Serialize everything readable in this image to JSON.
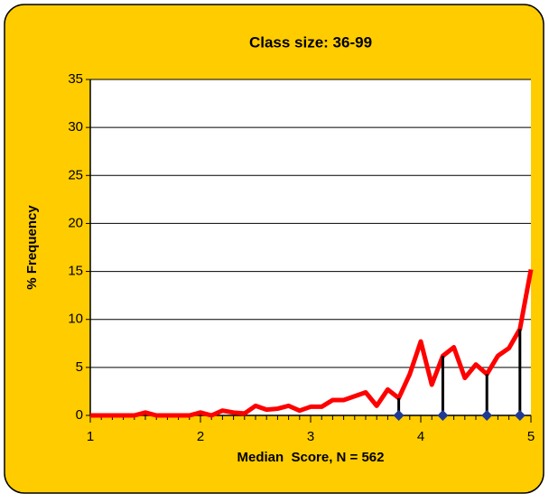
{
  "chart_data": {
    "type": "line",
    "title": "Class size: 36-99",
    "xlabel": "Median  Score, N = 562",
    "ylabel": "% Frequency",
    "x": [
      1.0,
      1.1,
      1.2,
      1.3,
      1.4,
      1.5,
      1.6,
      1.7,
      1.8,
      1.9,
      2.0,
      2.1,
      2.2,
      2.3,
      2.4,
      2.5,
      2.6,
      2.7,
      2.8,
      2.9,
      3.0,
      3.1,
      3.2,
      3.3,
      3.4,
      3.5,
      3.6,
      3.7,
      3.8,
      3.9,
      4.0,
      4.1,
      4.2,
      4.3,
      4.4,
      4.5,
      4.6,
      4.7,
      4.8,
      4.9,
      5.0
    ],
    "series": [
      {
        "color": "#ff0000",
        "values": [
          0,
          0,
          0,
          0,
          0,
          0.3,
          0,
          0,
          0,
          0,
          0.3,
          0,
          0.5,
          0.3,
          0.2,
          1.0,
          0.6,
          0.7,
          1.0,
          0.5,
          0.9,
          0.9,
          1.6,
          1.6,
          2.0,
          2.4,
          1.0,
          2.7,
          1.8,
          4.3,
          7.7,
          3.2,
          6.2,
          7.1,
          3.9,
          5.3,
          4.3,
          6.2,
          7.0,
          9.0,
          15.2
        ]
      }
    ],
    "markers": {
      "color": "#1f3a93",
      "line_color": "#000000",
      "x": [
        3.8,
        4.2,
        4.6,
        4.9
      ],
      "values": [
        1.8,
        6.2,
        4.3,
        9.0
      ]
    },
    "xlim": [
      1,
      5
    ],
    "xticks": [
      1,
      2,
      3,
      4,
      5
    ],
    "ylim": [
      0,
      35
    ],
    "yticks": [
      0,
      5,
      10,
      15,
      20,
      25,
      30,
      35
    ],
    "grid": true
  }
}
